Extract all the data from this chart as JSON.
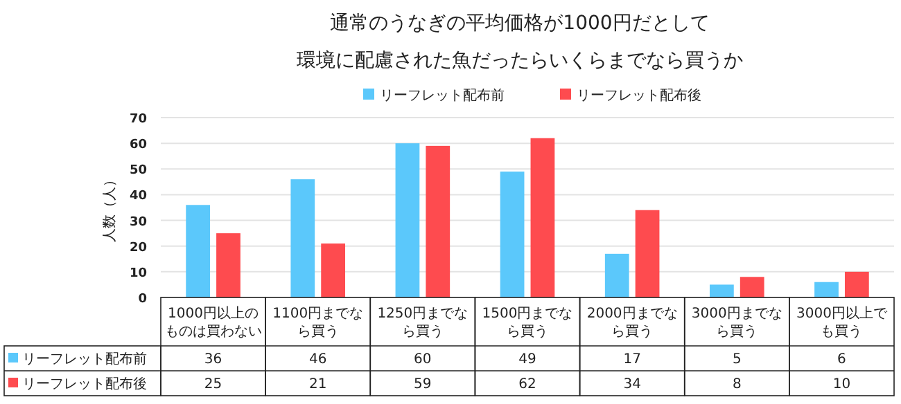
{
  "chart_data": {
    "type": "bar",
    "title": "通常のうなぎの平均価格が1000円だとして",
    "subtitle": "環境に配慮された魚だったらいくらまでなら買うか",
    "ylabel": "人数（人）",
    "categories": [
      "1000円以上のものは買わない",
      "1100円までなら買う",
      "1250円までなら買う",
      "1500円までなら買う",
      "2000円までなら買う",
      "3000円までなら買う",
      "3000円以上でも買う"
    ],
    "series": [
      {
        "name": "リーフレット配布前",
        "color": "#5bc8fb",
        "values": [
          36,
          46,
          60,
          49,
          17,
          5,
          6
        ]
      },
      {
        "name": "リーフレット配布後",
        "color": "#fe4b4f",
        "values": [
          25,
          21,
          59,
          62,
          34,
          8,
          10
        ]
      }
    ],
    "ylim": [
      0,
      70
    ],
    "yticks": [
      0,
      10,
      20,
      30,
      40,
      50,
      60,
      70
    ],
    "grid": "y",
    "legend": "top",
    "data_labels": true
  }
}
